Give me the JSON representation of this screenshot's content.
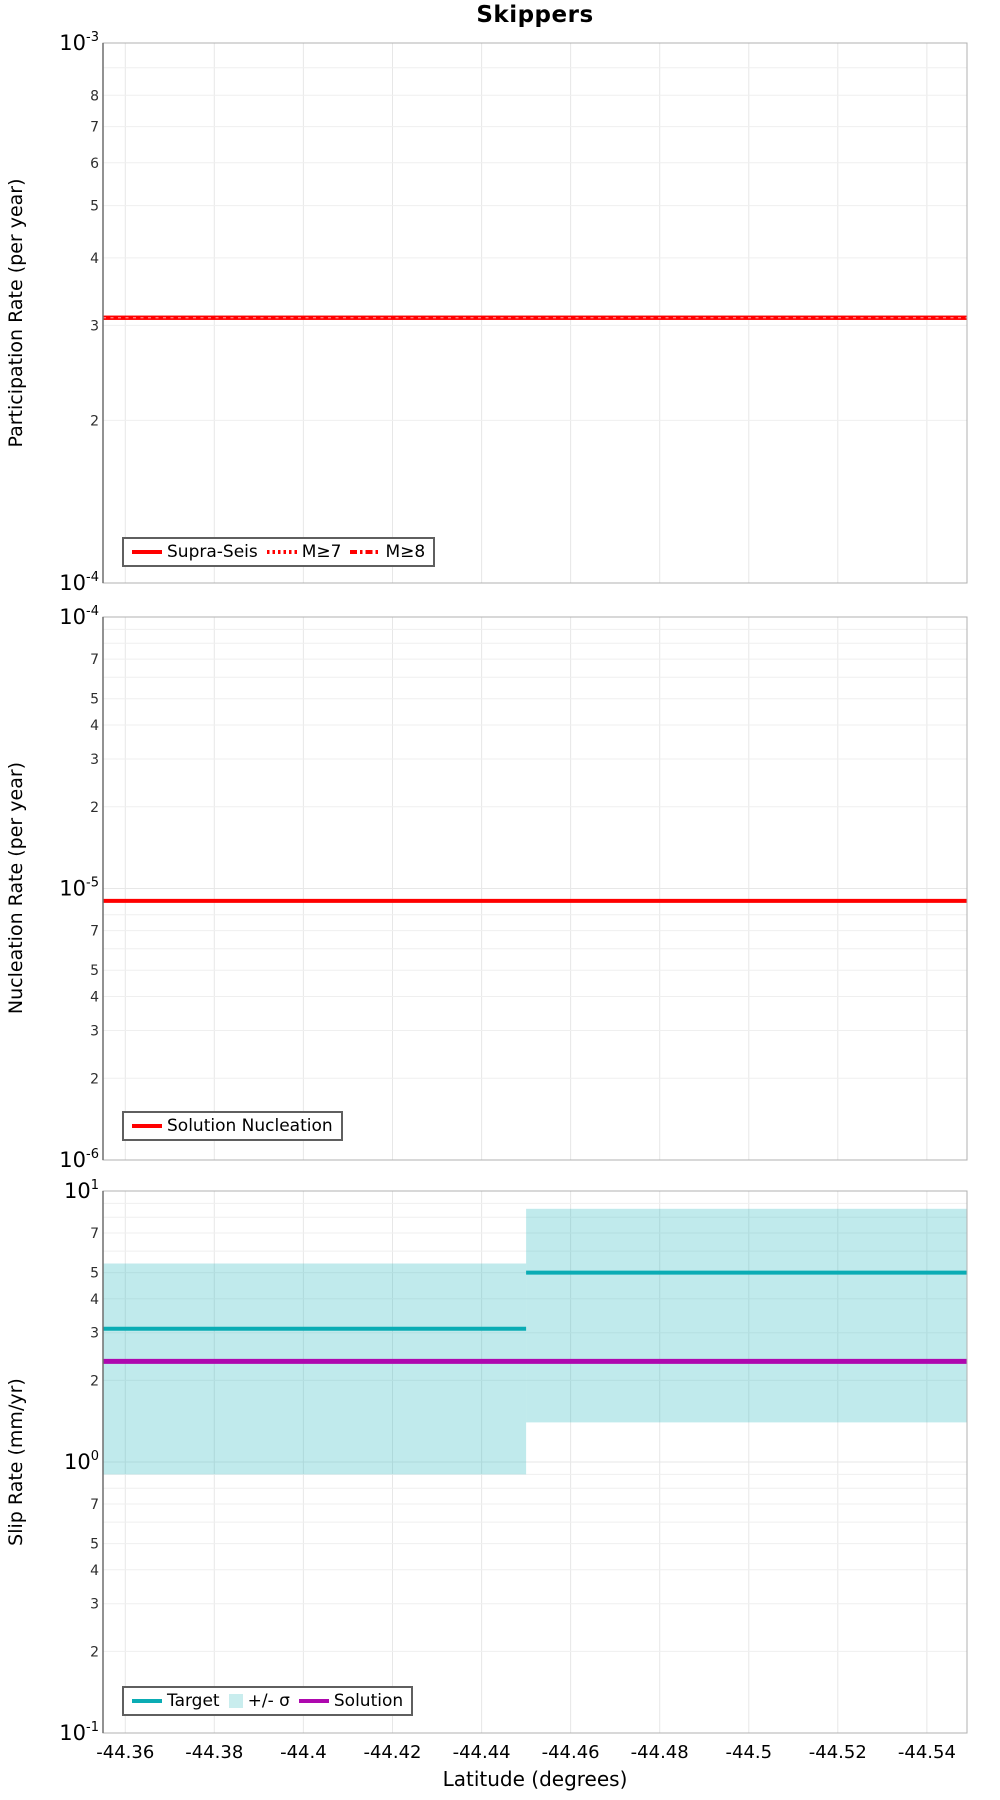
{
  "title": "Skippers",
  "colors": {
    "red": "#ff0000",
    "red_overlay_dash": "#ffd9d9",
    "teal": "#0aacb4",
    "purple": "#ae08ae",
    "band_fill": "#2fb9bf",
    "band_legend": "#c9edee",
    "grid": "#efefef",
    "grid_vertical": "#e7e7e7",
    "axis_frame": "#b0b0b0",
    "axis_spine_left": "#6f6f6f",
    "minor_tick_text": "#2e2e2e"
  },
  "x_axis": {
    "label": "Latitude (degrees)",
    "range": [
      -44.355,
      -44.549
    ],
    "reversed": true,
    "ticks": [
      {
        "label": "-44.36",
        "value": -44.36
      },
      {
        "label": "-44.38",
        "value": -44.38
      },
      {
        "label": "-44.4",
        "value": -44.4
      },
      {
        "label": "-44.42",
        "value": -44.42
      },
      {
        "label": "-44.44",
        "value": -44.44
      },
      {
        "label": "-44.46",
        "value": -44.46
      },
      {
        "label": "-44.48",
        "value": -44.48
      },
      {
        "label": "-44.5",
        "value": -44.5
      },
      {
        "label": "-44.52",
        "value": -44.52
      },
      {
        "label": "-44.54",
        "value": -44.54
      }
    ]
  },
  "chart_data": [
    {
      "type": "line",
      "panel": "participation",
      "ylabel": "Participation Rate (per year)",
      "yscale": "log",
      "ylim": [
        0.0001,
        0.001
      ],
      "grid": true,
      "y_minor_labeled_digits": [
        8,
        7,
        6,
        5,
        4,
        3,
        2
      ],
      "series": [
        {
          "name": "Supra-Seis",
          "type": "line",
          "style": "solid",
          "color_key": "red",
          "segments": [
            {
              "x": [
                -44.355,
                -44.549
              ],
              "y": 0.00031
            }
          ]
        },
        {
          "name": "M≥7",
          "type": "line",
          "style": "dotted",
          "color_key": "red",
          "segments": [
            {
              "x": [
                -44.355,
                -44.549
              ],
              "y": 0.00031
            }
          ]
        },
        {
          "name": "M≥8",
          "type": "line",
          "style": "dashdot",
          "color_key": "red",
          "segments": [
            {
              "x": [
                -44.355,
                -44.549
              ],
              "y": 0.00031
            }
          ]
        }
      ],
      "legend": {
        "position": "lower-left",
        "items": [
          {
            "label": "Supra-Seis",
            "swatch": "solid:red"
          },
          {
            "label": "M≥7",
            "swatch": "dotted:red"
          },
          {
            "label": "M≥8",
            "swatch": "dashdot:red"
          }
        ]
      }
    },
    {
      "type": "line",
      "panel": "nucleation",
      "ylabel": "Nucleation Rate (per year)",
      "yscale": "log",
      "ylim": [
        1e-06,
        0.0001
      ],
      "grid": true,
      "y_minor_labeled_digits": [
        7,
        5,
        4,
        3,
        2
      ],
      "series": [
        {
          "name": "Solution Nucleation",
          "type": "line",
          "style": "solid",
          "color_key": "red",
          "segments": [
            {
              "x": [
                -44.355,
                -44.549
              ],
              "y": 9e-06
            }
          ]
        }
      ],
      "legend": {
        "position": "lower-left",
        "items": [
          {
            "label": "Solution Nucleation",
            "swatch": "solid:red"
          }
        ]
      }
    },
    {
      "type": "line",
      "panel": "slip-rate",
      "ylabel": "Slip Rate (mm/yr)",
      "yscale": "log",
      "ylim": [
        0.1,
        10
      ],
      "grid": true,
      "y_minor_labeled_digits": [
        7,
        5,
        4,
        3,
        2
      ],
      "series": [
        {
          "name": "+/- σ",
          "type": "band",
          "color_key": "band_fill",
          "opacity": 0.3,
          "segments": [
            {
              "x": [
                -44.355,
                -44.45
              ],
              "lo": 0.9,
              "hi": 5.4
            },
            {
              "x": [
                -44.45,
                -44.549
              ],
              "lo": 1.4,
              "hi": 8.6
            }
          ]
        },
        {
          "name": "Target",
          "type": "line",
          "style": "solid",
          "color_key": "teal",
          "segments": [
            {
              "x": [
                -44.355,
                -44.45
              ],
              "y": 3.1
            },
            {
              "x": [
                -44.45,
                -44.549
              ],
              "y": 5.0
            }
          ]
        },
        {
          "name": "Solution",
          "type": "line",
          "style": "solid",
          "color_key": "purple",
          "segments": [
            {
              "x": [
                -44.355,
                -44.549
              ],
              "y": 2.35
            }
          ]
        }
      ],
      "legend": {
        "position": "lower-left",
        "items": [
          {
            "label": "Target",
            "swatch": "solid:teal"
          },
          {
            "label": "+/- σ",
            "swatch": "patch:band_legend"
          },
          {
            "label": "Solution",
            "swatch": "solid:purple"
          }
        ]
      }
    }
  ]
}
